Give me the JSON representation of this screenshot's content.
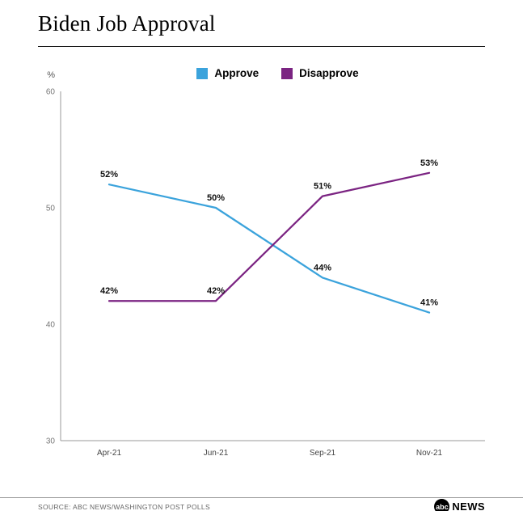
{
  "title": "Biden Job Approval",
  "legend": {
    "items": [
      {
        "label": "Approve",
        "color": "#3ba3dc"
      },
      {
        "label": "Disapprove",
        "color": "#7b2482"
      }
    ]
  },
  "footer": {
    "source": "SOURCE: ABC NEWS/WASHINGTON POST POLLS",
    "brand_circle_text": "abc",
    "brand_name": "NEWS"
  },
  "chart_data": {
    "type": "line",
    "title": "Biden Job Approval",
    "categories": [
      "Apr-21",
      "Jun-21",
      "Sep-21",
      "Nov-21"
    ],
    "series": [
      {
        "name": "Approve",
        "color": "#3ba3dc",
        "values": [
          52,
          50,
          44,
          41
        ],
        "data_labels": [
          "52%",
          "50%",
          "44%",
          "41%"
        ]
      },
      {
        "name": "Disapprove",
        "color": "#7b2482",
        "values": [
          42,
          42,
          51,
          53
        ],
        "data_labels": [
          "42%",
          "42%",
          "51%",
          "53%"
        ]
      }
    ],
    "ylabel": "%",
    "ylim": [
      30,
      60
    ],
    "yticks": [
      60,
      50,
      40,
      30
    ],
    "grid": false,
    "legend_position": "top"
  }
}
